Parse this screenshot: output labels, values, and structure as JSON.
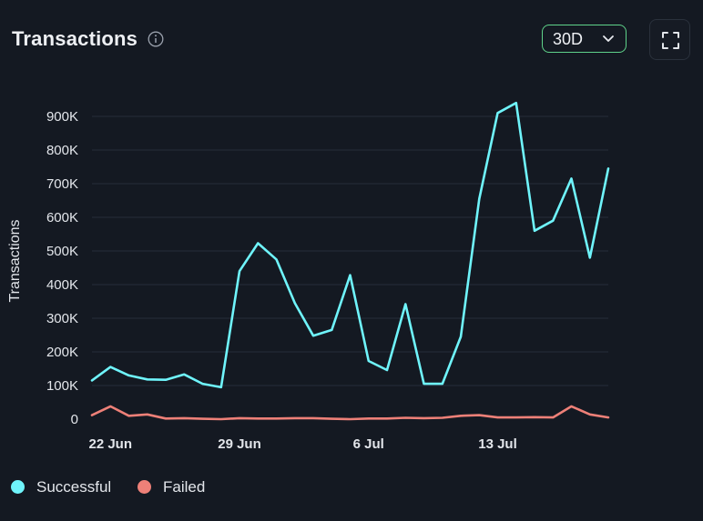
{
  "header": {
    "title": "Transactions",
    "info_icon": "info-circle-icon",
    "range_value": "30D",
    "expand_icon": "fullscreen-icon"
  },
  "colors": {
    "background": "#141922",
    "successful": "#6ff4fb",
    "failed": "#ee8078",
    "grid": "#262d39",
    "range_border": "#5fd38a"
  },
  "chart_data": {
    "type": "line",
    "title": "Transactions",
    "xlabel": "",
    "ylabel": "Transactions",
    "ylim": [
      0,
      900000
    ],
    "grid": true,
    "legend": "bottom-left",
    "y_ticks": [
      {
        "value": 0,
        "label": "0"
      },
      {
        "value": 100000,
        "label": "100K"
      },
      {
        "value": 200000,
        "label": "200K"
      },
      {
        "value": 300000,
        "label": "300K"
      },
      {
        "value": 400000,
        "label": "400K"
      },
      {
        "value": 500000,
        "label": "500K"
      },
      {
        "value": 600000,
        "label": "600K"
      },
      {
        "value": 700000,
        "label": "700K"
      },
      {
        "value": 800000,
        "label": "800K"
      },
      {
        "value": 900000,
        "label": "900K"
      }
    ],
    "x_ticks": [
      {
        "index": 1,
        "label": "22 Jun"
      },
      {
        "index": 8,
        "label": "29 Jun"
      },
      {
        "index": 15,
        "label": "6 Jul"
      },
      {
        "index": 22,
        "label": "13 Jul"
      }
    ],
    "x": [
      "21 Jun",
      "22 Jun",
      "23 Jun",
      "24 Jun",
      "25 Jun",
      "26 Jun",
      "27 Jun",
      "28 Jun",
      "29 Jun",
      "30 Jun",
      "1 Jul",
      "2 Jul",
      "3 Jul",
      "4 Jul",
      "5 Jul",
      "6 Jul",
      "7 Jul",
      "8 Jul",
      "9 Jul",
      "10 Jul",
      "11 Jul",
      "12 Jul",
      "13 Jul",
      "14 Jul",
      "15 Jul",
      "16 Jul",
      "17 Jul",
      "18 Jul",
      "19 Jul"
    ],
    "series": [
      {
        "name": "Successful",
        "color": "#6ff4fb",
        "values": [
          115000,
          155000,
          130000,
          118000,
          117000,
          133000,
          105000,
          95000,
          440000,
          523000,
          475000,
          345000,
          248000,
          265000,
          428000,
          173000,
          146000,
          342000,
          105000,
          105000,
          245000,
          655000,
          910000,
          940000,
          560000,
          590000,
          715000,
          480000,
          745000
        ]
      },
      {
        "name": "Failed",
        "color": "#ee8078",
        "values": [
          12000,
          38000,
          10000,
          14000,
          2000,
          3000,
          1000,
          0,
          3000,
          2000,
          2000,
          3000,
          3000,
          1000,
          0,
          2000,
          2000,
          4000,
          3000,
          4000,
          10000,
          12000,
          5000,
          5000,
          6000,
          5000,
          38000,
          14000,
          5000
        ]
      }
    ]
  }
}
